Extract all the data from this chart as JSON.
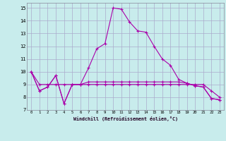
{
  "xlabel": "Windchill (Refroidissement éolien,°C)",
  "background_color": "#c8ecec",
  "grid_color": "#aaaacc",
  "line_color": "#aa00aa",
  "xlim": [
    -0.5,
    23.5
  ],
  "ylim": [
    7,
    15.4
  ],
  "xticks": [
    0,
    1,
    2,
    3,
    4,
    5,
    6,
    7,
    8,
    9,
    10,
    11,
    12,
    13,
    14,
    15,
    16,
    17,
    18,
    19,
    20,
    21,
    22,
    23
  ],
  "yticks": [
    7,
    8,
    9,
    10,
    11,
    12,
    13,
    14,
    15
  ],
  "series": [
    [
      10,
      8.5,
      8.8,
      9.7,
      7.5,
      9.0,
      9.0,
      10.3,
      11.8,
      12.2,
      15.0,
      14.9,
      13.9,
      13.2,
      13.1,
      12.0,
      11.0,
      10.5,
      9.4,
      9.1,
      8.9,
      8.8,
      7.9,
      7.8
    ],
    [
      10,
      8.5,
      8.8,
      9.7,
      7.5,
      9.0,
      9.0,
      9.2,
      9.2,
      9.2,
      9.2,
      9.2,
      9.2,
      9.2,
      9.2,
      9.2,
      9.2,
      9.2,
      9.2,
      9.1,
      8.9,
      8.8,
      7.9,
      7.8
    ],
    [
      10,
      9.0,
      9.0,
      9.0,
      9.0,
      9.0,
      9.0,
      9.0,
      9.0,
      9.0,
      9.0,
      9.0,
      9.0,
      9.0,
      9.0,
      9.0,
      9.0,
      9.0,
      9.0,
      9.0,
      9.0,
      9.0,
      8.5,
      8.0
    ]
  ]
}
